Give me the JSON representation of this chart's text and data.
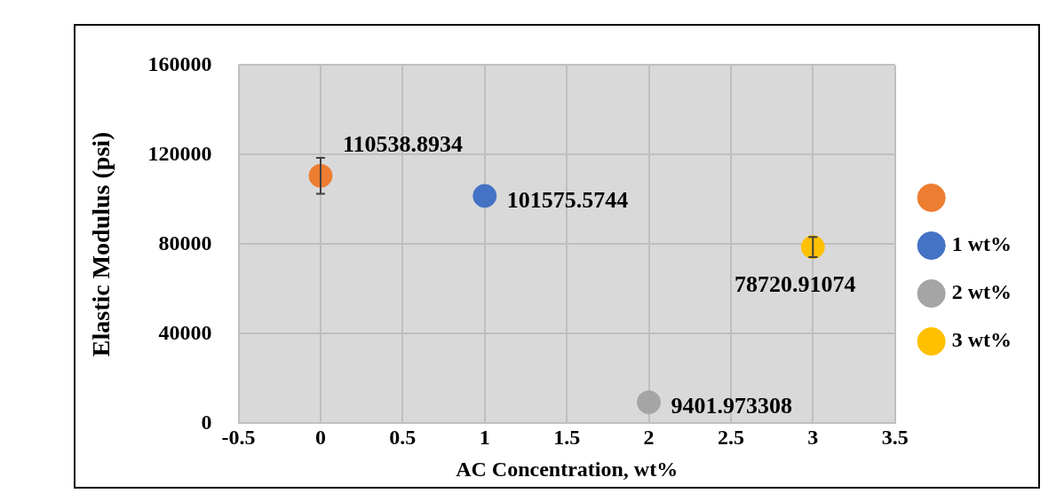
{
  "chart_data": {
    "type": "scatter",
    "xlabel": "AC Concentration, wt%",
    "ylabel": "Elastic Modulus (psi)",
    "xlim": [
      -0.5,
      3.5
    ],
    "xticks": [
      -0.5,
      0,
      0.5,
      1,
      1.5,
      2,
      2.5,
      3,
      3.5
    ],
    "ylim": [
      0,
      160000
    ],
    "yticks": [
      0,
      40000,
      80000,
      120000,
      160000
    ],
    "grid": true,
    "legend": "right",
    "marker": "circle",
    "data_labels": true,
    "series": [
      {
        "color": "#ed7d31",
        "x": [
          0
        ],
        "values": [
          110538.8934
        ],
        "errors": [
          8000
        ]
      },
      {
        "name": "1 wt%",
        "color": "#4472c4",
        "x": [
          1
        ],
        "values": [
          101575.5744
        ]
      },
      {
        "name": "2 wt%",
        "color": "#a5a5a5",
        "x": [
          2
        ],
        "values": [
          9401.973308
        ]
      },
      {
        "name": "3 wt%",
        "color": "#ffc000",
        "x": [
          3
        ],
        "values": [
          78720.91074
        ],
        "errors": [
          4500
        ]
      }
    ]
  }
}
